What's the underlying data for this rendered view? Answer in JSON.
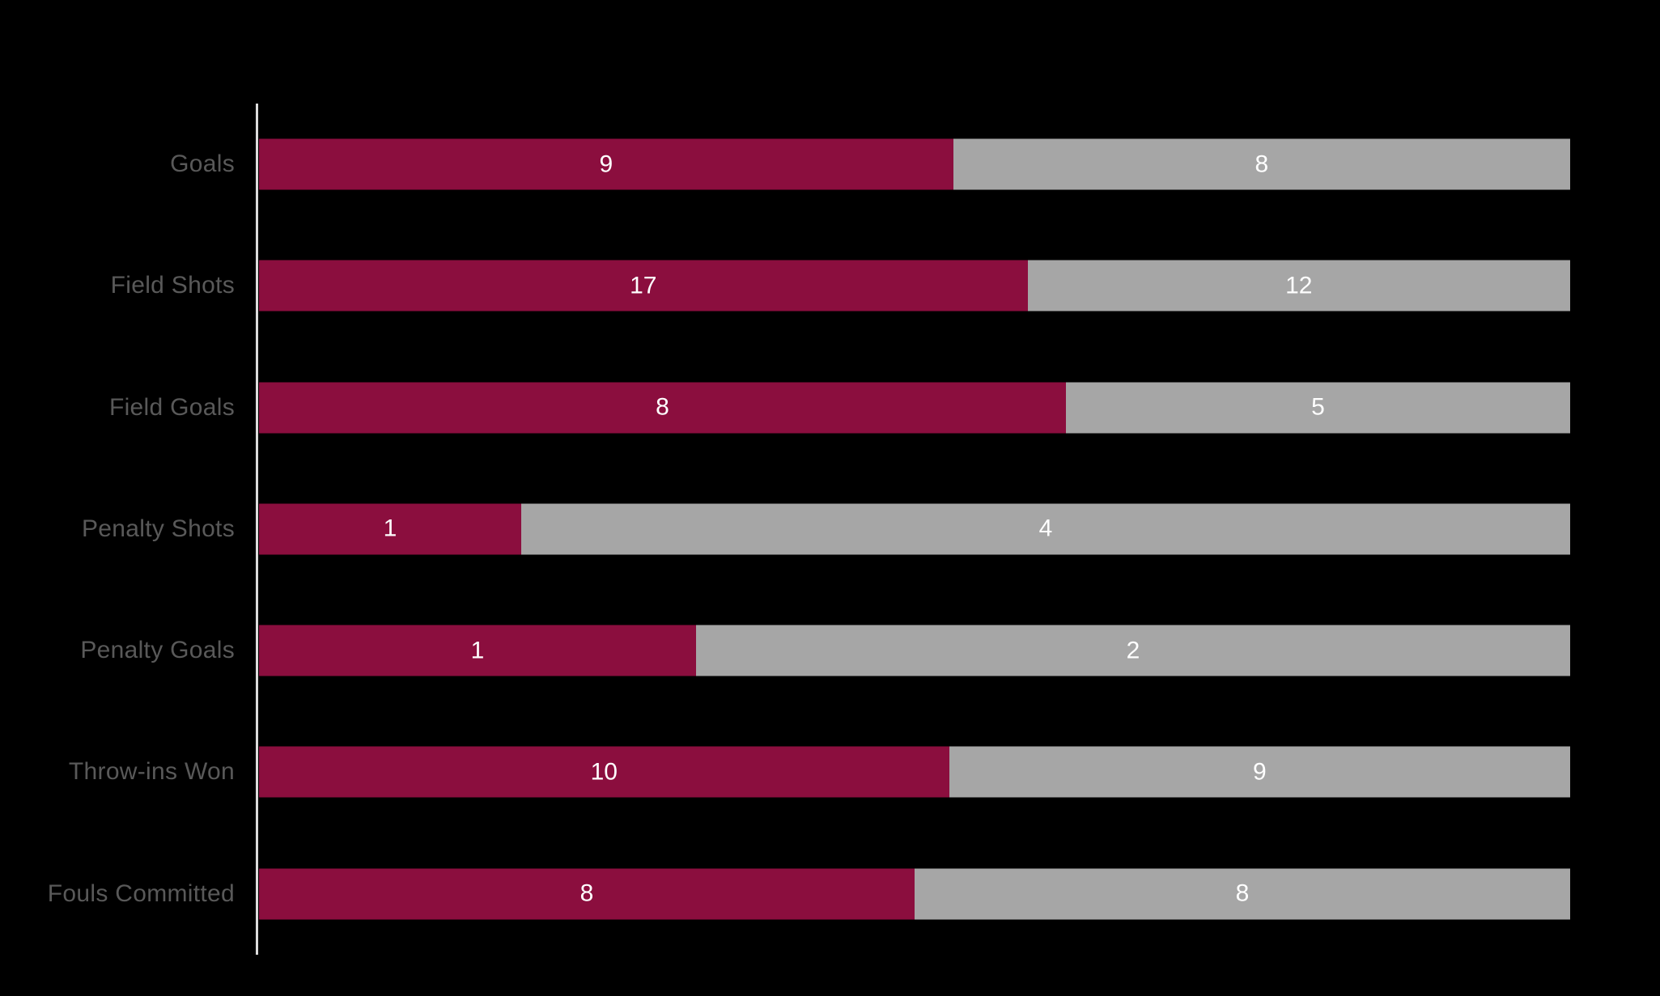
{
  "chart_data": {
    "type": "bar",
    "subtype": "horizontal-stacked-100pct",
    "title": "",
    "xlabel": "",
    "ylabel": "",
    "legend_position": "none",
    "grid": false,
    "background_color": "#000000",
    "axis_line_color": "#DCDCDC",
    "category_label_color": "#595959",
    "value_label_color": "#FFFFFF",
    "categories": [
      "Goals",
      "Field Shots",
      "Field Goals",
      "Penalty Shots",
      "Penalty Goals",
      "Throw-ins Won",
      "Fouls Committed"
    ],
    "series": [
      {
        "name": "series-maroon",
        "color": "#8B0E3E",
        "values": [
          9,
          17,
          8,
          1,
          1,
          10,
          8
        ]
      },
      {
        "name": "series-gray",
        "color": "#A6A6A6",
        "values": [
          8,
          12,
          5,
          4,
          2,
          9,
          8
        ]
      }
    ]
  }
}
